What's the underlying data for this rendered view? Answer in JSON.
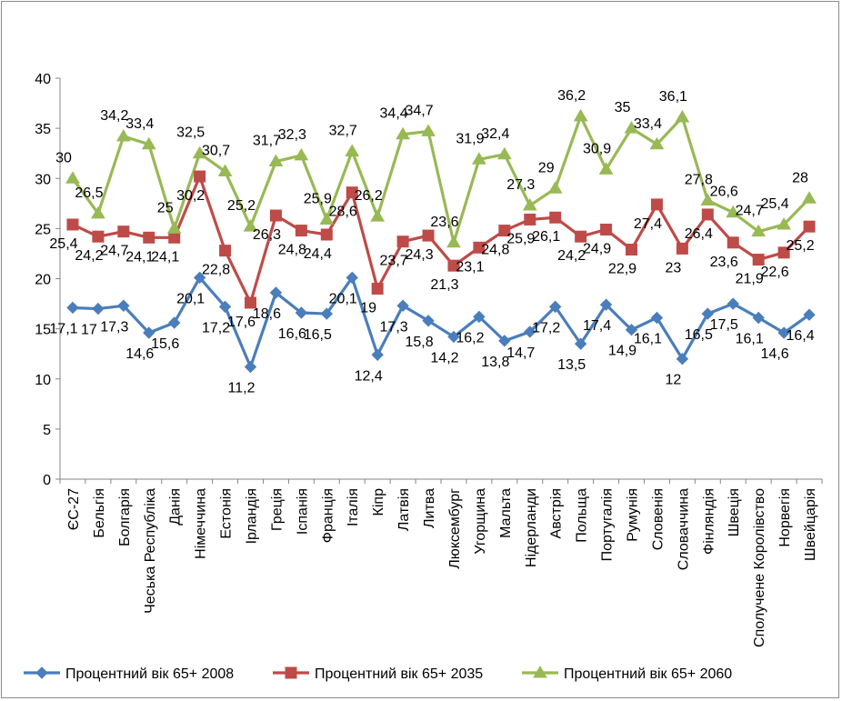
{
  "chart_data": {
    "type": "line",
    "title": "",
    "xlabel": "",
    "ylabel": "",
    "ylim": [
      0,
      40
    ],
    "yticks": [
      "0",
      "5",
      "10",
      "15",
      "20",
      "25",
      "30",
      "35",
      "40"
    ],
    "grid": false,
    "legend_position": "bottom",
    "categories": [
      "ЄС-27",
      "Бельгія",
      "Болгарія",
      "Чеська Республіка",
      "Данія",
      "Німеччина",
      "Естонія",
      "Ірландія",
      "Греція",
      "Іспанія",
      "Франція",
      "Італія",
      "Кіпр",
      "Латвія",
      "Литва",
      "Люксембург",
      "Угорщина",
      "Мальта",
      "Нідерланди",
      "Австрія",
      "Польща",
      "Португалія",
      "Румунія",
      "Словенія",
      "Словаччина",
      "Фінляндія",
      "Швеція",
      "Сполучене Королівство",
      "Норвегія",
      "Швейцарія"
    ],
    "series": [
      {
        "name": "Процентний вік  65+ 2008",
        "color": "#4a7ebb",
        "marker": "diamond",
        "values": [
          17.1,
          17,
          17.3,
          14.6,
          15.6,
          20.1,
          17.2,
          11.2,
          18.6,
          16.6,
          16.5,
          20.1,
          12.4,
          17.3,
          15.8,
          14.2,
          16.2,
          13.8,
          14.7,
          17.2,
          13.5,
          17.4,
          14.9,
          16.1,
          12,
          16.5,
          17.5,
          16.1,
          14.6,
          16.4
        ],
        "labels": [
          "17,1",
          "17",
          "17,3",
          "14,6",
          "15,6",
          "20,1",
          "17,2",
          "11,2",
          "18,6",
          "16,6",
          "16,5",
          "20,1",
          "12,4",
          "17,3",
          "15,8",
          "14,2",
          "16,2",
          "13,8",
          "14,7",
          "17,2",
          "13,5",
          "17,4",
          "14,9",
          "16,1",
          "12",
          "16,5",
          "17,5",
          "16,1",
          "14,6",
          "16,4"
        ]
      },
      {
        "name": "Процентний вік  65+ 2035",
        "color": "#be4b48",
        "marker": "square",
        "values": [
          25.4,
          24.2,
          24.7,
          24.1,
          24.1,
          30.2,
          22.8,
          17.6,
          26.3,
          24.8,
          24.4,
          28.6,
          19,
          23.7,
          24.3,
          21.3,
          23.1,
          24.8,
          25.9,
          26.1,
          24.2,
          24.9,
          22.9,
          27.4,
          23,
          26.4,
          23.6,
          21.9,
          22.6,
          25.2
        ],
        "labels": [
          "25,4",
          "24,2",
          "24,7",
          "24,1",
          "24,1",
          "30,2",
          "22,8",
          "17,6",
          "26,3",
          "24,8",
          "24,4",
          "28,6",
          "19",
          "23,7",
          "24,3",
          "21,3",
          "23,1",
          "24,8",
          "25,9",
          "26,1",
          "24,2",
          "24,9",
          "22,9",
          "27,4",
          "23",
          "26,4",
          "23,6",
          "21,9",
          "22,6",
          "25,2"
        ]
      },
      {
        "name": "Процентний вік  65+ 2060",
        "color": "#98b954",
        "marker": "triangle",
        "values": [
          30,
          26.5,
          34.2,
          33.4,
          25,
          32.5,
          30.7,
          25.2,
          31.7,
          32.3,
          25.9,
          32.7,
          26.2,
          34.4,
          34.7,
          23.6,
          31.9,
          32.4,
          27.3,
          29,
          36.2,
          30.9,
          35,
          33.4,
          36.1,
          27.8,
          26.6,
          24.7,
          25.4,
          28
        ],
        "labels": [
          "30",
          "26,5",
          "34,2",
          "33,4",
          "25",
          "32,5",
          "30,7",
          "25,2",
          "31,7",
          "32,3",
          "25,9",
          "32,7",
          "26,2",
          "34,4",
          "34,7",
          "23,6",
          "31,9",
          "32,4",
          "27,3",
          "29",
          "36,2",
          "30,9",
          "35",
          "33,4",
          "36,1",
          "27,8",
          "26,6",
          "24,7",
          "25,4",
          "28"
        ]
      }
    ]
  }
}
